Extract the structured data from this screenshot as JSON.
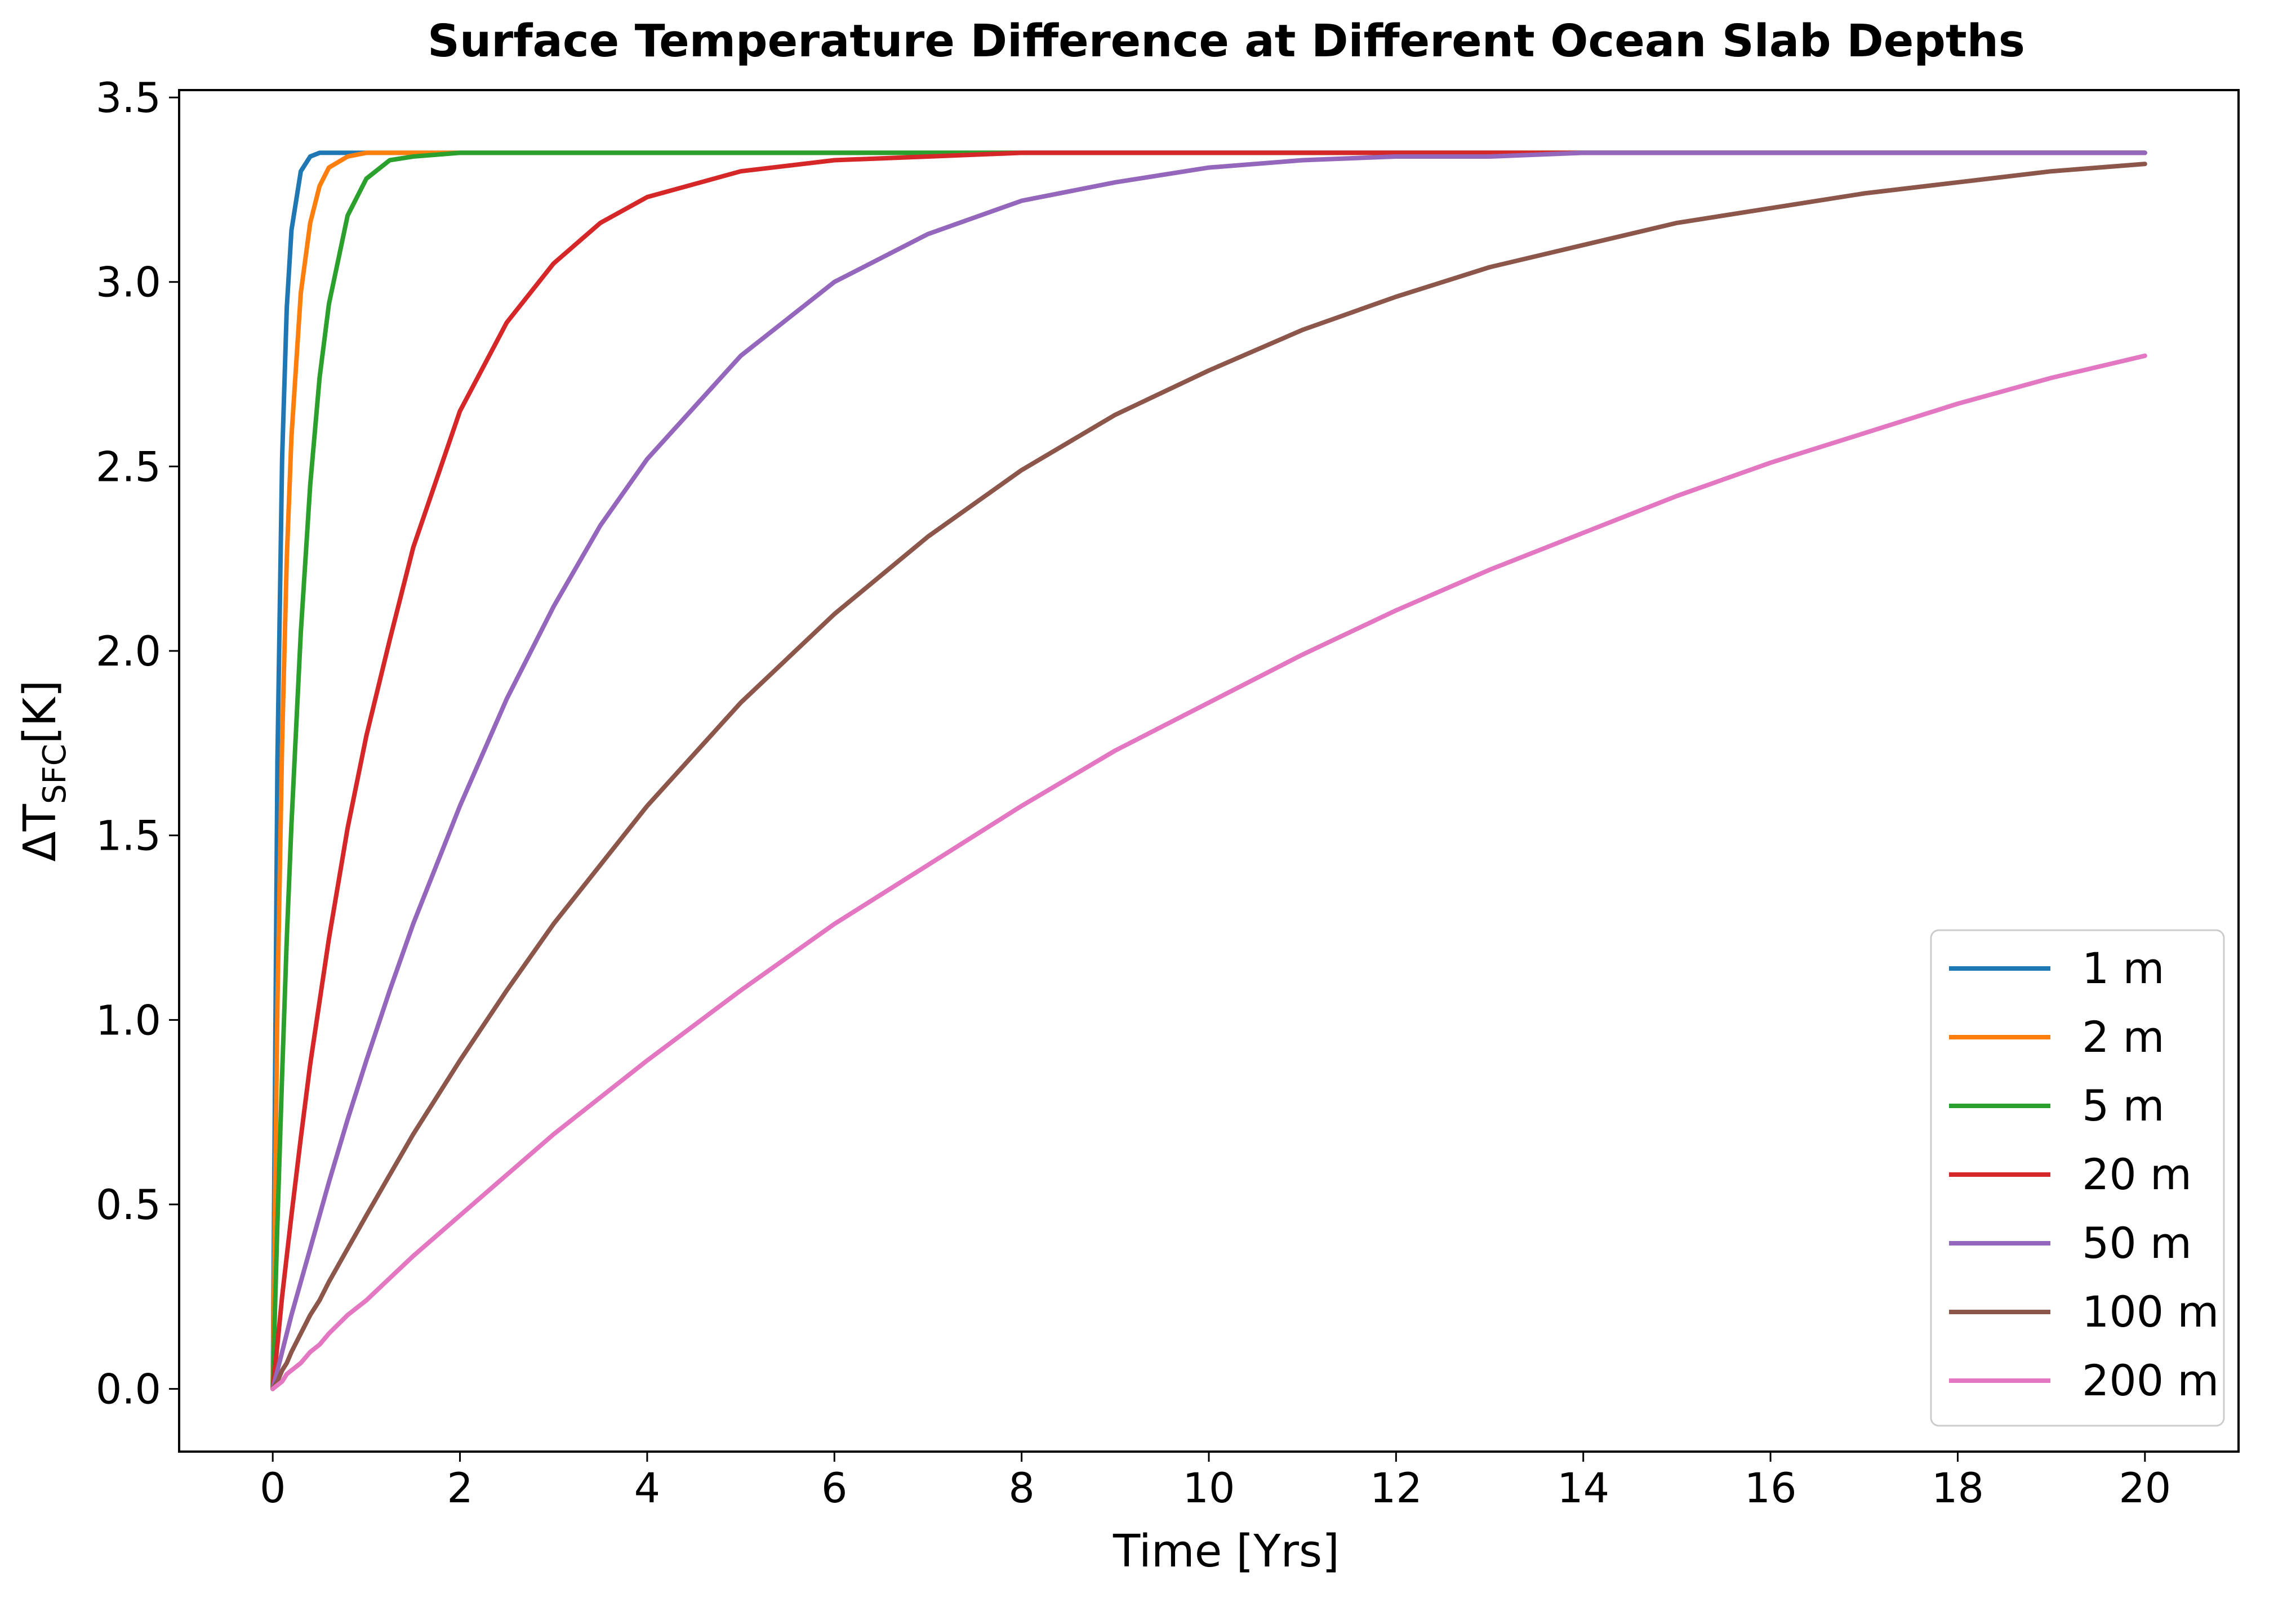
{
  "chart_data": {
    "type": "line",
    "title": "Surface Temperature Difference at Different Ocean Slab Depths",
    "xlabel": "Time [Yrs]",
    "ylabel": "ΔT_SFC[K]",
    "xlim": [
      -1,
      21
    ],
    "ylim": [
      -0.17,
      3.52
    ],
    "xticks": [
      0,
      2,
      4,
      6,
      8,
      10,
      12,
      14,
      16,
      18,
      20
    ],
    "yticks": [
      0.0,
      0.5,
      1.0,
      1.5,
      2.0,
      2.5,
      3.0,
      3.5
    ],
    "ytick_labels": [
      "0.0",
      "0.5",
      "1.0",
      "1.5",
      "2.0",
      "2.5",
      "3.0",
      "3.5"
    ],
    "grid": false,
    "legend_position": "lower-right",
    "x": [
      0,
      0.05,
      0.1,
      0.15,
      0.2,
      0.3,
      0.4,
      0.5,
      0.6,
      0.8,
      1,
      1.25,
      1.5,
      2,
      2.5,
      3,
      3.5,
      4,
      5,
      6,
      7,
      8,
      9,
      10,
      11,
      12,
      13,
      14,
      15,
      16,
      17,
      18,
      19,
      20
    ],
    "series": [
      {
        "name": "1 m",
        "color": "#1f77b4",
        "values": [
          0.0,
          1.7,
          2.52,
          2.93,
          3.14,
          3.3,
          3.34,
          3.35,
          3.35,
          3.35,
          3.35,
          3.35,
          3.35,
          3.35,
          3.35,
          3.35,
          3.35,
          3.35,
          3.35,
          3.35,
          3.35,
          3.35,
          3.35,
          3.35,
          3.35,
          3.35,
          3.35,
          3.35,
          3.35,
          3.35,
          3.35,
          3.35,
          3.35,
          3.35
        ]
      },
      {
        "name": "2 m",
        "color": "#ff7f0e",
        "values": [
          0.0,
          1.04,
          1.75,
          2.25,
          2.58,
          2.97,
          3.16,
          3.26,
          3.31,
          3.34,
          3.35,
          3.35,
          3.35,
          3.35,
          3.35,
          3.35,
          3.35,
          3.35,
          3.35,
          3.35,
          3.35,
          3.35,
          3.35,
          3.35,
          3.35,
          3.35,
          3.35,
          3.35,
          3.35,
          3.35,
          3.35,
          3.35,
          3.35,
          3.35
        ]
      },
      {
        "name": "5 m",
        "color": "#2ca02c",
        "values": [
          0.0,
          0.45,
          0.85,
          1.22,
          1.53,
          2.05,
          2.45,
          2.74,
          2.94,
          3.18,
          3.28,
          3.33,
          3.34,
          3.35,
          3.35,
          3.35,
          3.35,
          3.35,
          3.35,
          3.35,
          3.35,
          3.35,
          3.35,
          3.35,
          3.35,
          3.35,
          3.35,
          3.35,
          3.35,
          3.35,
          3.35,
          3.35,
          3.35,
          3.35
        ]
      },
      {
        "name": "20 m",
        "color": "#d62728",
        "values": [
          0.0,
          0.12,
          0.25,
          0.36,
          0.47,
          0.68,
          0.88,
          1.05,
          1.22,
          1.52,
          1.77,
          2.03,
          2.28,
          2.65,
          2.89,
          3.05,
          3.16,
          3.23,
          3.3,
          3.33,
          3.34,
          3.35,
          3.35,
          3.35,
          3.35,
          3.35,
          3.35,
          3.35,
          3.35,
          3.35,
          3.35,
          3.35,
          3.35,
          3.35
        ]
      },
      {
        "name": "50 m",
        "color": "#9467bd",
        "values": [
          0.0,
          0.05,
          0.1,
          0.15,
          0.2,
          0.29,
          0.38,
          0.47,
          0.56,
          0.73,
          0.89,
          1.08,
          1.26,
          1.58,
          1.87,
          2.12,
          2.34,
          2.52,
          2.8,
          3.0,
          3.13,
          3.22,
          3.27,
          3.31,
          3.33,
          3.34,
          3.34,
          3.35,
          3.35,
          3.35,
          3.35,
          3.35,
          3.35,
          3.35
        ]
      },
      {
        "name": "100 m",
        "color": "#8c564b",
        "values": [
          0.0,
          0.02,
          0.05,
          0.07,
          0.1,
          0.15,
          0.2,
          0.24,
          0.29,
          0.38,
          0.47,
          0.58,
          0.69,
          0.89,
          1.08,
          1.26,
          1.42,
          1.58,
          1.86,
          2.1,
          2.31,
          2.49,
          2.64,
          2.76,
          2.87,
          2.96,
          3.04,
          3.1,
          3.16,
          3.2,
          3.24,
          3.27,
          3.3,
          3.32
        ]
      },
      {
        "name": "200 m",
        "color": "#e377c2",
        "values": [
          0.0,
          0.01,
          0.02,
          0.04,
          0.05,
          0.07,
          0.1,
          0.12,
          0.15,
          0.2,
          0.24,
          0.3,
          0.36,
          0.47,
          0.58,
          0.69,
          0.79,
          0.89,
          1.08,
          1.26,
          1.42,
          1.58,
          1.73,
          1.86,
          1.99,
          2.11,
          2.22,
          2.32,
          2.42,
          2.51,
          2.59,
          2.67,
          2.74,
          2.8
        ]
      }
    ]
  }
}
